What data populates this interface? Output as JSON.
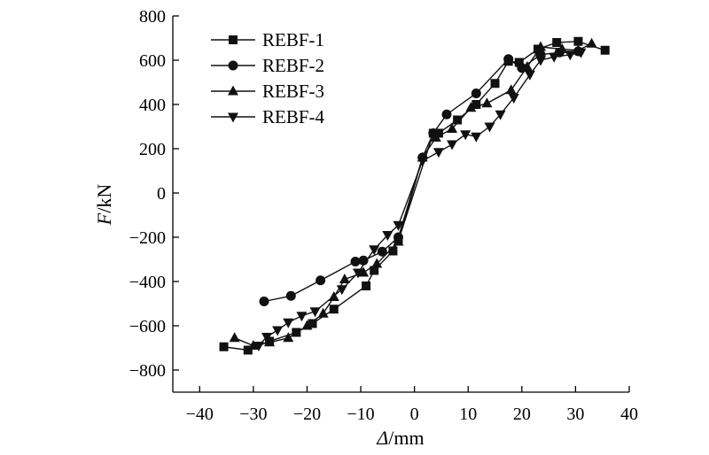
{
  "chart_data": {
    "type": "line",
    "title": "",
    "xlabel": "Δ/mm",
    "ylabel": "F/kN",
    "xlabel_parts": {
      "symbol": "Δ",
      "unit": "/mm"
    },
    "ylabel_parts": {
      "symbol": "F",
      "unit": "/kN"
    },
    "xlim": [
      -45,
      40
    ],
    "ylim": [
      -900,
      800
    ],
    "xticks": [
      -40,
      -30,
      -20,
      -10,
      0,
      10,
      20,
      30,
      40
    ],
    "yticks": [
      -800,
      -600,
      -400,
      -200,
      0,
      200,
      400,
      600,
      800
    ],
    "xtick_labels": [
      "−40",
      "−30",
      "−20",
      "−10",
      "0",
      "10",
      "20",
      "30",
      "40"
    ],
    "ytick_labels": [
      "−800",
      "−600",
      "−400",
      "−200",
      "0",
      "200",
      "400",
      "600",
      "800"
    ],
    "grid": false,
    "legend_position": "top-left",
    "series": [
      {
        "name": "REBF-1",
        "marker": "square",
        "points": [
          [
            -35.5,
            -695
          ],
          [
            -31,
            -710
          ],
          [
            -27,
            -670
          ],
          [
            -22,
            -630
          ],
          [
            -19,
            -590
          ],
          [
            -15,
            -525
          ],
          [
            -9,
            -420
          ],
          [
            -7.5,
            -350
          ],
          [
            -4,
            -262
          ],
          [
            -3,
            -215
          ],
          [
            3.5,
            270
          ],
          [
            4.5,
            270
          ],
          [
            8,
            330
          ],
          [
            11.5,
            400
          ],
          [
            15,
            495
          ],
          [
            17.5,
            595
          ],
          [
            19.5,
            590
          ],
          [
            23,
            650
          ],
          [
            26.5,
            680
          ],
          [
            30.5,
            685
          ],
          [
            35.5,
            645
          ]
        ]
      },
      {
        "name": "REBF-2",
        "marker": "circle",
        "points": [
          [
            -28,
            -490
          ],
          [
            -23,
            -465
          ],
          [
            -17.5,
            -395
          ],
          [
            -11,
            -310
          ],
          [
            -9.5,
            -305
          ],
          [
            -6,
            -265
          ],
          [
            -3,
            -200
          ],
          [
            1.5,
            160
          ],
          [
            3.5,
            270
          ],
          [
            6,
            355
          ],
          [
            11.5,
            450
          ],
          [
            17.5,
            605
          ],
          [
            20,
            565
          ],
          [
            23.5,
            625
          ],
          [
            27,
            635
          ],
          [
            30.5,
            640
          ]
        ]
      },
      {
        "name": "REBF-3",
        "marker": "triangle-up",
        "points": [
          [
            -33.5,
            -655
          ],
          [
            -30,
            -690
          ],
          [
            -27,
            -675
          ],
          [
            -23.5,
            -655
          ],
          [
            -20,
            -600
          ],
          [
            -17,
            -545
          ],
          [
            -15,
            -470
          ],
          [
            -13,
            -390
          ],
          [
            -9.5,
            -360
          ],
          [
            -7,
            -320
          ],
          [
            -3,
            -220
          ],
          [
            1.5,
            160
          ],
          [
            4,
            250
          ],
          [
            7,
            290
          ],
          [
            10.5,
            385
          ],
          [
            13.5,
            405
          ],
          [
            18,
            465
          ],
          [
            21,
            570
          ],
          [
            23.5,
            660
          ],
          [
            27.5,
            650
          ],
          [
            30.5,
            645
          ],
          [
            33,
            675
          ]
        ]
      },
      {
        "name": "REBF-4",
        "marker": "triangle-down",
        "points": [
          [
            -29,
            -690
          ],
          [
            -27.5,
            -650
          ],
          [
            -25.5,
            -620
          ],
          [
            -23.5,
            -585
          ],
          [
            -21,
            -555
          ],
          [
            -18.5,
            -535
          ],
          [
            -13.5,
            -435
          ],
          [
            -10.5,
            -360
          ],
          [
            -7.5,
            -255
          ],
          [
            -5,
            -190
          ],
          [
            -3,
            -145
          ],
          [
            1.5,
            145
          ],
          [
            4.5,
            185
          ],
          [
            7,
            220
          ],
          [
            9.5,
            265
          ],
          [
            11.5,
            255
          ],
          [
            14,
            300
          ],
          [
            16,
            355
          ],
          [
            18.5,
            430
          ],
          [
            21.5,
            535
          ],
          [
            23.5,
            600
          ],
          [
            26,
            615
          ],
          [
            29,
            625
          ],
          [
            31,
            635
          ]
        ]
      }
    ]
  }
}
